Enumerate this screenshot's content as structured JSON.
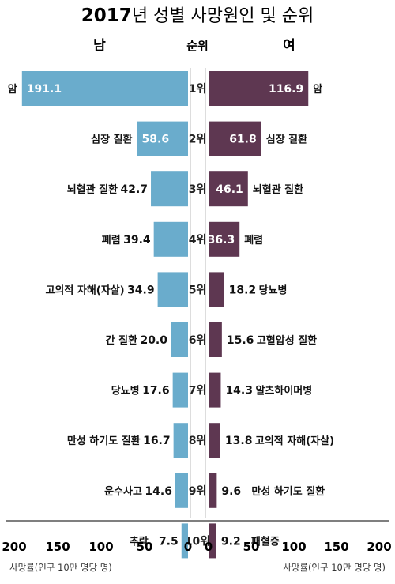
{
  "title": {
    "year": "2017",
    "rest": "년 성별 사망원인 및 순위"
  },
  "header": {
    "male": "남",
    "rank": "순위",
    "female": "여"
  },
  "axis": {
    "left_ticks": [
      "200",
      "150",
      "100",
      "50",
      "0"
    ],
    "right_ticks": [
      "0",
      "50",
      "100",
      "150",
      "200"
    ],
    "left_label": "사망률(인구 10만 명당 명)",
    "right_label": "사망률(인구 10만 명당 명)"
  },
  "colors": {
    "male": "#6aaccc",
    "female": "#5e3751"
  },
  "chart_data": {
    "type": "bar",
    "title": "2017년 성별 사망원인 및 순위",
    "xlabel": "사망률(인구 10만 명당 명)",
    "xlim": [
      0,
      200
    ],
    "grid": false,
    "ranks": [
      "1위",
      "2위",
      "3위",
      "4위",
      "5위",
      "6위",
      "7위",
      "8위",
      "9위",
      "10위"
    ],
    "series": [
      {
        "name": "남",
        "categories": [
          "암",
          "심장 질환",
          "뇌혈관 질환",
          "폐렴",
          "고의적 자해(자살)",
          "간 질환",
          "당뇨병",
          "만성 하기도 질환",
          "운수사고",
          "추락"
        ],
        "values": [
          191.1,
          58.6,
          42.7,
          39.4,
          34.9,
          20.0,
          17.6,
          16.7,
          14.6,
          7.5
        ],
        "labels": [
          "191.1",
          "58.6",
          "42.7",
          "39.4",
          "34.9",
          "20.0",
          "17.6",
          "16.7",
          "14.6",
          "7.5"
        ]
      },
      {
        "name": "여",
        "categories": [
          "암",
          "심장 질환",
          "뇌혈관 질환",
          "폐렴",
          "당뇨병",
          "고혈압성 질환",
          "알츠하이머병",
          "고의적 자해(자살)",
          "만성 하기도 질환",
          "패혈증"
        ],
        "values": [
          116.9,
          61.8,
          46.1,
          36.3,
          18.2,
          15.6,
          14.3,
          13.8,
          9.6,
          9.2
        ],
        "labels": [
          "116.9",
          "61.8",
          "46.1",
          "36.3",
          "18.2",
          "15.6",
          "14.3",
          "13.8",
          "9.6",
          "9.2"
        ]
      }
    ]
  }
}
